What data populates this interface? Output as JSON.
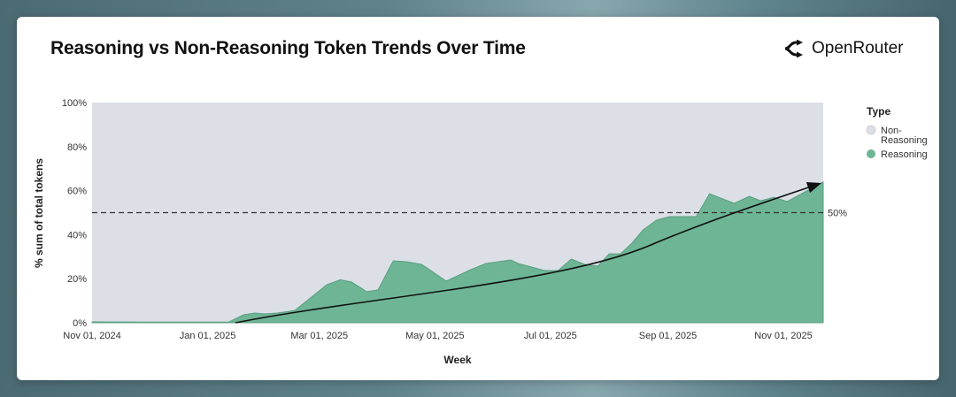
{
  "header": {
    "title": "Reasoning vs Non-Reasoning Token Trends Over Time",
    "brand": "OpenRouter",
    "brand_icon": "openrouter-logo-icon"
  },
  "chart_data": {
    "type": "area",
    "stacked": true,
    "normalized": true,
    "title": "Reasoning vs Non-Reasoning Token Trends Over Time",
    "xlabel": "Week",
    "ylabel": "% sum of total tokens",
    "ylim": [
      0,
      100
    ],
    "y_ticks": [
      "0%",
      "20%",
      "40%",
      "60%",
      "80%",
      "100%"
    ],
    "x_ticks": [
      "Nov 01, 2024",
      "Jan 01, 2025",
      "Mar 01, 2025",
      "May 01, 2025",
      "Jul 01, 2025",
      "Sep 01, 2025",
      "Nov 01, 2025"
    ],
    "legend": {
      "title": "Type",
      "position": "right",
      "entries": [
        {
          "label": "Non-Reasoning",
          "color": "#dcdfe6"
        },
        {
          "label": "Reasoning",
          "color": "#6db595"
        }
      ]
    },
    "reference_line": {
      "value": 50,
      "label": "50%",
      "style": "dashed"
    },
    "trend_arrow": {
      "description": "upward curved trend line from Jan 2025 to end of Nov 2025",
      "start_pct": 0,
      "end_pct": 63
    },
    "series": [
      {
        "name": "Reasoning",
        "color": "#6db595",
        "points": [
          {
            "x": "2024-11-01",
            "y": 0.4
          },
          {
            "x": "2024-12-01",
            "y": 0.3
          },
          {
            "x": "2025-01-01",
            "y": 0.3
          },
          {
            "x": "2025-01-12",
            "y": 0.3
          },
          {
            "x": "2025-01-20",
            "y": 3.6
          },
          {
            "x": "2025-01-26",
            "y": 4.4
          },
          {
            "x": "2025-01-31",
            "y": 4.0
          },
          {
            "x": "2025-02-07",
            "y": 4.4
          },
          {
            "x": "2025-02-16",
            "y": 5.6
          },
          {
            "x": "2025-03-05",
            "y": 17.3
          },
          {
            "x": "2025-03-12",
            "y": 19.5
          },
          {
            "x": "2025-03-18",
            "y": 18.5
          },
          {
            "x": "2025-03-26",
            "y": 14.1
          },
          {
            "x": "2025-04-01",
            "y": 14.9
          },
          {
            "x": "2025-04-09",
            "y": 28.1
          },
          {
            "x": "2025-04-16",
            "y": 27.7
          },
          {
            "x": "2025-04-24",
            "y": 26.5
          },
          {
            "x": "2025-05-07",
            "y": 18.9
          },
          {
            "x": "2025-05-20",
            "y": 24.1
          },
          {
            "x": "2025-05-28",
            "y": 26.9
          },
          {
            "x": "2025-06-10",
            "y": 28.5
          },
          {
            "x": "2025-06-14",
            "y": 26.9
          },
          {
            "x": "2025-06-28",
            "y": 23.7
          },
          {
            "x": "2025-07-05",
            "y": 23.7
          },
          {
            "x": "2025-07-12",
            "y": 28.9
          },
          {
            "x": "2025-07-19",
            "y": 26.5
          },
          {
            "x": "2025-07-26",
            "y": 25.7
          },
          {
            "x": "2025-08-01",
            "y": 31.3
          },
          {
            "x": "2025-08-07",
            "y": 31.3
          },
          {
            "x": "2025-08-13",
            "y": 36.1
          },
          {
            "x": "2025-08-19",
            "y": 42.2
          },
          {
            "x": "2025-08-26",
            "y": 46.6
          },
          {
            "x": "2025-09-02",
            "y": 48.2
          },
          {
            "x": "2025-09-16",
            "y": 48.2
          },
          {
            "x": "2025-09-23",
            "y": 58.6
          },
          {
            "x": "2025-10-06",
            "y": 54.2
          },
          {
            "x": "2025-10-14",
            "y": 57.4
          },
          {
            "x": "2025-10-20",
            "y": 55.4
          },
          {
            "x": "2025-10-27",
            "y": 57.0
          },
          {
            "x": "2025-11-03",
            "y": 55.0
          },
          {
            "x": "2025-11-24",
            "y": 63.9
          }
        ]
      },
      {
        "name": "Non-Reasoning",
        "color": "#dcdfe6",
        "description": "complement of Reasoning (100% - Reasoning)"
      }
    ]
  }
}
